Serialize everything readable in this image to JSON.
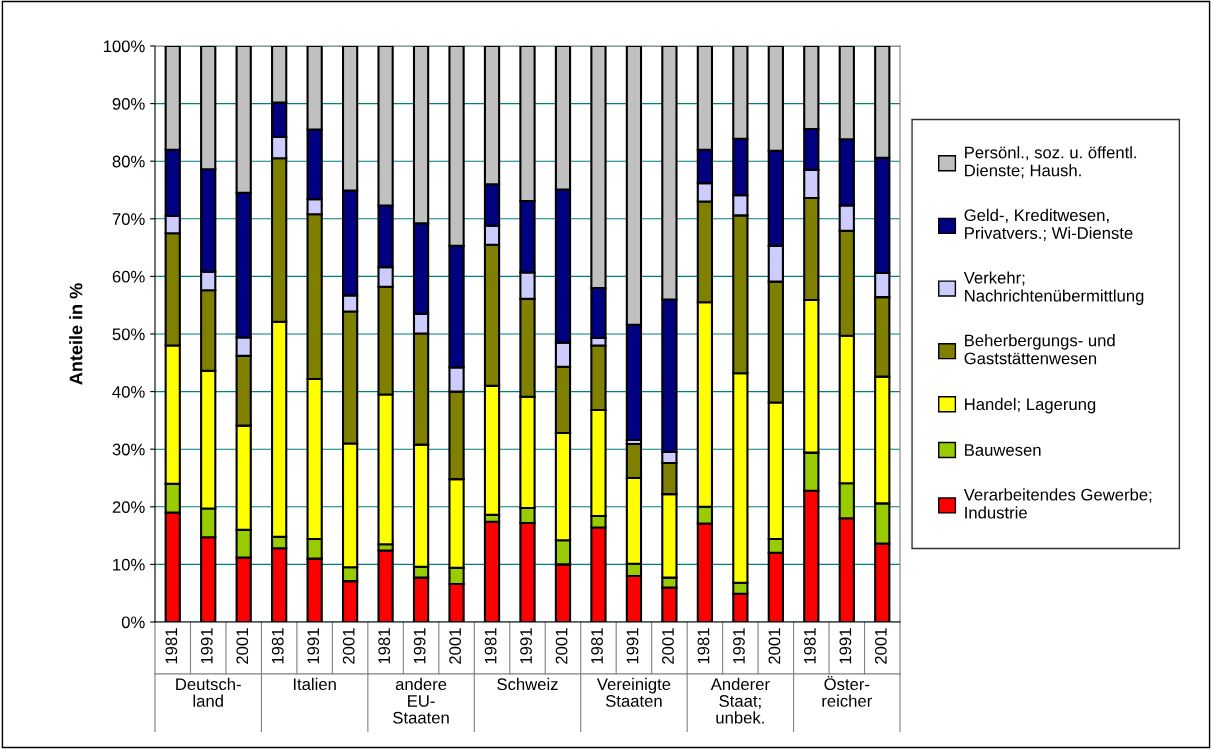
{
  "chart_data": {
    "type": "bar",
    "stacked": true,
    "ylabel": "Anteile in %",
    "categories": [
      "1981",
      "1991",
      "2001",
      "1981",
      "1991",
      "2001",
      "1981",
      "1991",
      "2001",
      "1981",
      "1991",
      "2001",
      "1981",
      "1991",
      "2001",
      "1981",
      "1991",
      "2001",
      "1981",
      "1991",
      "2001"
    ],
    "annotations": [
      "Deutsch-\nland",
      "Italien",
      "andere\nEU-\nStaaten",
      "Schweiz",
      "Vereinigte\nStaaten",
      "Anderer\nStaat;\nunbek.",
      "Öster-\nreicher"
    ],
    "series": [
      {
        "name": "Verarbeitendes Gewerbe;\nIndustrie",
        "color": "#ff0000",
        "values": [
          19,
          14.7,
          11.2,
          12.8,
          11,
          7.1,
          12.4,
          7.7,
          6.6,
          17.4,
          17.2,
          10,
          16.4,
          8,
          6,
          17.1,
          4.9,
          12,
          22.8,
          18,
          13.6
        ]
      },
      {
        "name": "Bauwesen",
        "color": "#99cc00",
        "values": [
          5,
          5,
          4.8,
          2,
          3.4,
          2.4,
          1.1,
          1.9,
          2.8,
          1.2,
          2.6,
          4.2,
          2,
          2.1,
          1.7,
          2.9,
          1.9,
          2.4,
          6.6,
          6.1,
          7
        ]
      },
      {
        "name": "Handel; Lagerung",
        "color": "#ffff00",
        "values": [
          24,
          23.9,
          18.1,
          37.3,
          27.8,
          21.5,
          26,
          21.2,
          15.4,
          22.4,
          19.3,
          18.6,
          18.4,
          14.9,
          14.5,
          35.5,
          36.4,
          23.7,
          26.5,
          25.6,
          22
        ]
      },
      {
        "name": "Beherbergungs- und\nGaststättenwesen",
        "color": "#808000",
        "values": [
          19.5,
          14,
          12.1,
          28.4,
          28.6,
          22.9,
          18.7,
          19.3,
          15.2,
          24.5,
          17,
          11.5,
          11.2,
          5.9,
          5.4,
          17.5,
          27.4,
          21,
          17.7,
          18.2,
          13.8
        ]
      },
      {
        "name": "Verkehr;\nNachrichtenübermittlung",
        "color": "#ccccff",
        "values": [
          3,
          3.2,
          3.2,
          3.7,
          2.6,
          2.8,
          3.4,
          3.4,
          4.2,
          3.3,
          4.6,
          4.2,
          1.3,
          0.7,
          1.9,
          3.2,
          3.5,
          6.2,
          4.9,
          4.4,
          4.2
        ]
      },
      {
        "name": "Geld-, Kreditwesen,\nPrivatvers.; Wi-Dienste",
        "color": "#000080",
        "values": [
          11.5,
          17.8,
          25.1,
          6,
          12.1,
          18.2,
          10.7,
          15.7,
          21.1,
          7.2,
          12.4,
          26.6,
          8.7,
          20,
          26.5,
          5.8,
          9.8,
          16.5,
          7.1,
          11.5,
          20
        ]
      },
      {
        "name": "Persönl., soz. u. öffentl.\nDienste; Haush.",
        "color": "#c0c0c0",
        "values": [
          18,
          21.4,
          25.5,
          9.8,
          14.5,
          25.1,
          27.7,
          30.8,
          34.7,
          24,
          26.9,
          24.9,
          42,
          48.4,
          44,
          18,
          16.1,
          18.2,
          14.4,
          16.2,
          19.4
        ]
      }
    ],
    "ylim": [
      0,
      100
    ],
    "yticks": [
      {
        "value": 0,
        "label": "0%"
      },
      {
        "value": 10,
        "label": "10%"
      },
      {
        "value": 20,
        "label": "20%"
      },
      {
        "value": 30,
        "label": "30%"
      },
      {
        "value": 40,
        "label": "40%"
      },
      {
        "value": 50,
        "label": "50%"
      },
      {
        "value": 60,
        "label": "60%"
      },
      {
        "value": 70,
        "label": "70%"
      },
      {
        "value": 80,
        "label": "80%"
      },
      {
        "value": 90,
        "label": "90%"
      },
      {
        "value": 100,
        "label": "100%"
      }
    ],
    "grid": "y",
    "legend": "right"
  }
}
